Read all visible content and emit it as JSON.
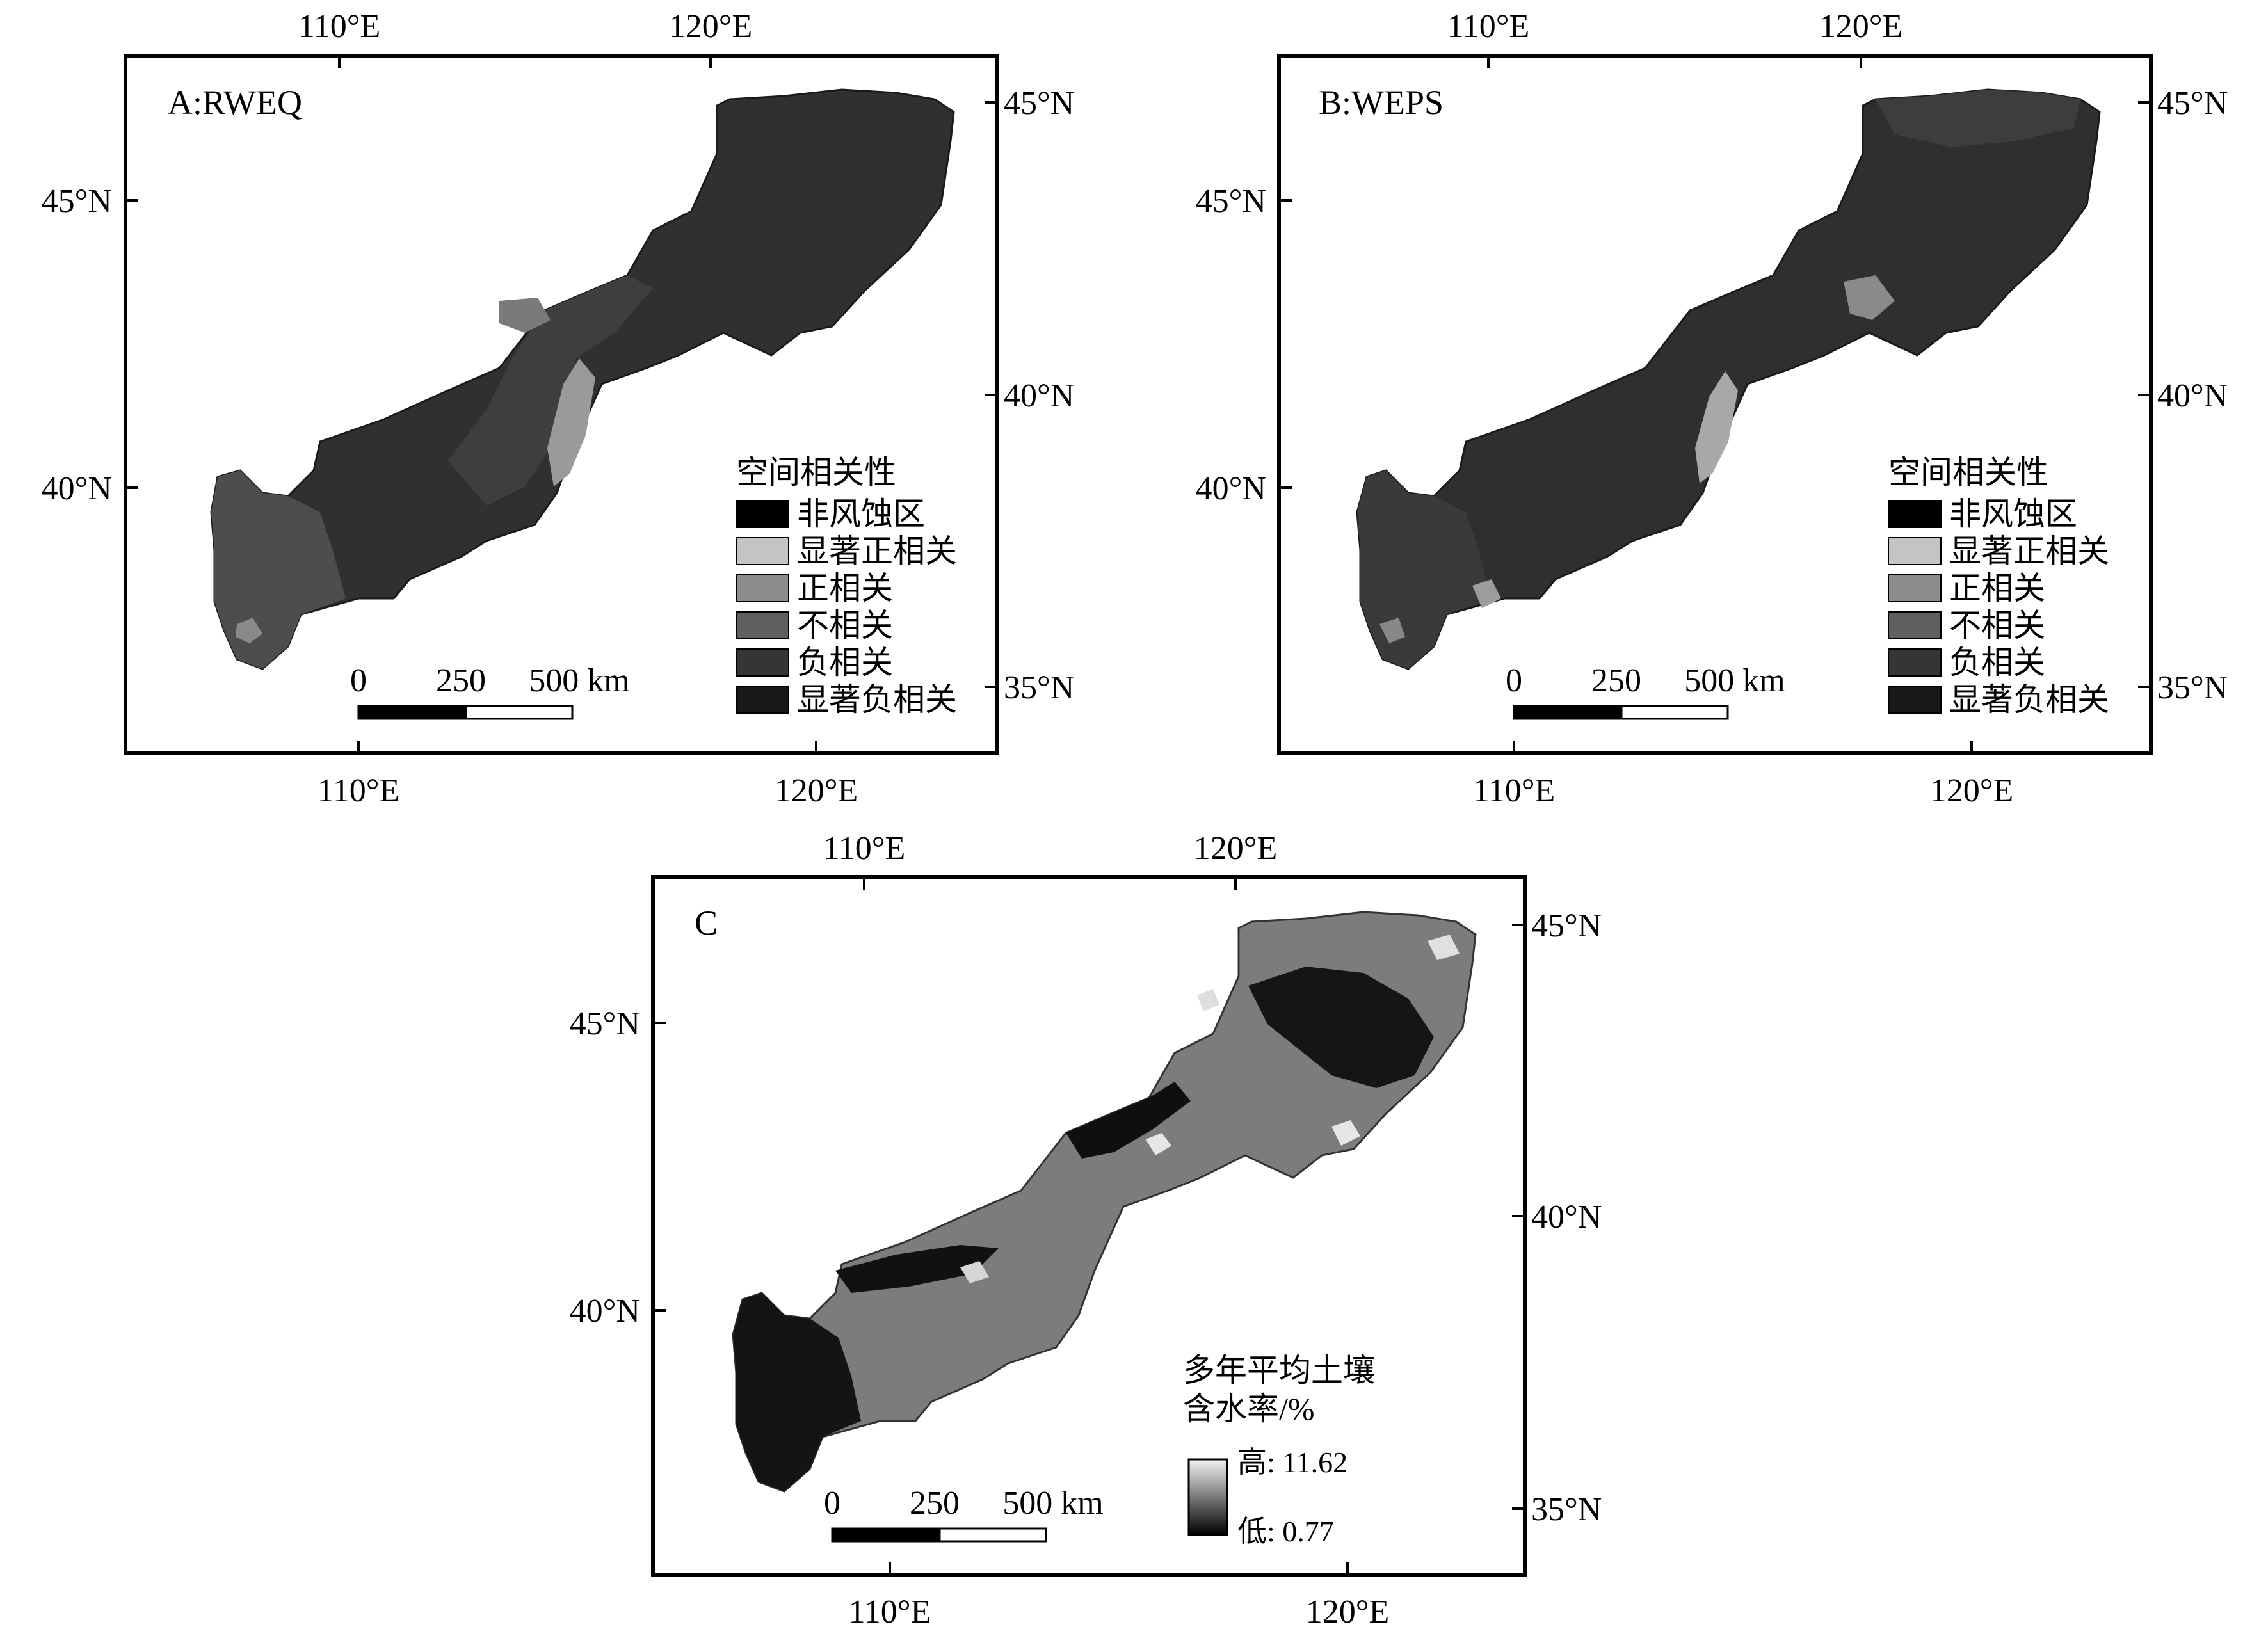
{
  "panels": [
    {
      "title": "A:RWEQ",
      "axis": {
        "top": [
          "110°E",
          "120°E"
        ],
        "bottom": [
          "110°E",
          "120°E"
        ],
        "left": [
          "45°N",
          "40°N"
        ],
        "right": [
          "45°N",
          "40°N",
          "35°N"
        ]
      },
      "legend": {
        "title": "空间相关性",
        "items": [
          {
            "label": "非风蚀区",
            "color": "#000000"
          },
          {
            "label": "显著正相关",
            "color": "#c4c4c4"
          },
          {
            "label": "正相关",
            "color": "#8c8c8c"
          },
          {
            "label": "不相关",
            "color": "#5f5f5f"
          },
          {
            "label": "负相关",
            "color": "#353535"
          },
          {
            "label": "显著负相关",
            "color": "#181818"
          }
        ]
      },
      "scale": {
        "ticks": [
          "0",
          "250",
          "500 km"
        ]
      },
      "map_colors": {
        "base": "#2f2f2f",
        "west": "#4a4a4a",
        "patch": "#9a9a9a"
      }
    },
    {
      "title": "B:WEPS",
      "axis": {
        "top": [
          "110°E",
          "120°E"
        ],
        "bottom": [
          "110°E",
          "120°E"
        ],
        "left": [
          "45°N",
          "40°N"
        ],
        "right": [
          "45°N",
          "40°N",
          "35°N"
        ]
      },
      "legend": {
        "title": "空间相关性",
        "items": [
          {
            "label": "非风蚀区",
            "color": "#000000"
          },
          {
            "label": "显著正相关",
            "color": "#c4c4c4"
          },
          {
            "label": "正相关",
            "color": "#8c8c8c"
          },
          {
            "label": "不相关",
            "color": "#5f5f5f"
          },
          {
            "label": "负相关",
            "color": "#353535"
          },
          {
            "label": "显著负相关",
            "color": "#181818"
          }
        ]
      },
      "scale": {
        "ticks": [
          "0",
          "250",
          "500 km"
        ]
      },
      "map_colors": {
        "base": "#303030",
        "west": "#3a3a3a",
        "patch": "#a8a8a8"
      }
    },
    {
      "title": "C",
      "axis": {
        "top": [
          "110°E",
          "120°E"
        ],
        "bottom": [
          "110°E",
          "120°E"
        ],
        "left": [
          "45°N",
          "40°N"
        ],
        "right": [
          "45°N",
          "40°N",
          "35°N"
        ]
      },
      "colorbar": {
        "title_line1": "多年平均土壤",
        "title_line2": "含水率/%",
        "high_label": "高: 11.62",
        "low_label": "低: 0.77",
        "high_color": "#f2f2f2",
        "low_color": "#000000"
      },
      "scale": {
        "ticks": [
          "0",
          "250",
          "500 km"
        ]
      },
      "map_colors": {
        "base": "#7c7c7c",
        "dark": "#111111",
        "light": "#e6e6e6"
      }
    }
  ]
}
